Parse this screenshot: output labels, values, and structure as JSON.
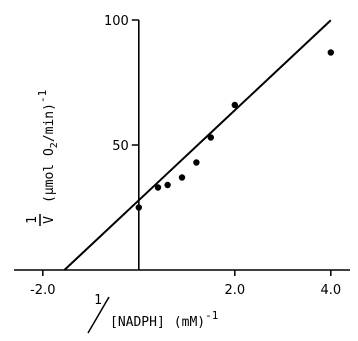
{
  "chart_data": {
    "type": "scatter",
    "xlabel": {
      "numerator": "1",
      "denominator": "[NADPH]",
      "units": "(mM)",
      "exponent": "-1"
    },
    "ylabel": {
      "numerator": "1",
      "denominator": "V",
      "units_prefix": "(",
      "units_mu": "μ",
      "units_mid": "mol O",
      "units_sub": "2",
      "units_end": "/min)",
      "exponent": "-1"
    },
    "xlim": [
      -2.6,
      4.4
    ],
    "ylim": [
      0,
      100
    ],
    "x_ticks": [
      {
        "value": -2.0,
        "label": "-2.0"
      },
      {
        "value": 2.0,
        "label": "2.0"
      },
      {
        "value": 4.0,
        "label": "4.0"
      }
    ],
    "y_ticks": [
      {
        "value": 50,
        "label": "50"
      },
      {
        "value": 100,
        "label": "100"
      }
    ],
    "grid": false,
    "series": [
      {
        "points": [
          {
            "x": 0.0,
            "y": 25
          },
          {
            "x": 0.4,
            "y": 33
          },
          {
            "x": 0.6,
            "y": 34
          },
          {
            "x": 0.9,
            "y": 37
          },
          {
            "x": 1.2,
            "y": 43
          },
          {
            "x": 1.5,
            "y": 53
          },
          {
            "x": 2.0,
            "y": 66
          },
          {
            "x": 4.0,
            "y": 87
          }
        ]
      }
    ],
    "fit_line": {
      "x_start": -1.55,
      "x_end": 4.0,
      "slope": 18.0,
      "intercept": 27.9
    }
  }
}
